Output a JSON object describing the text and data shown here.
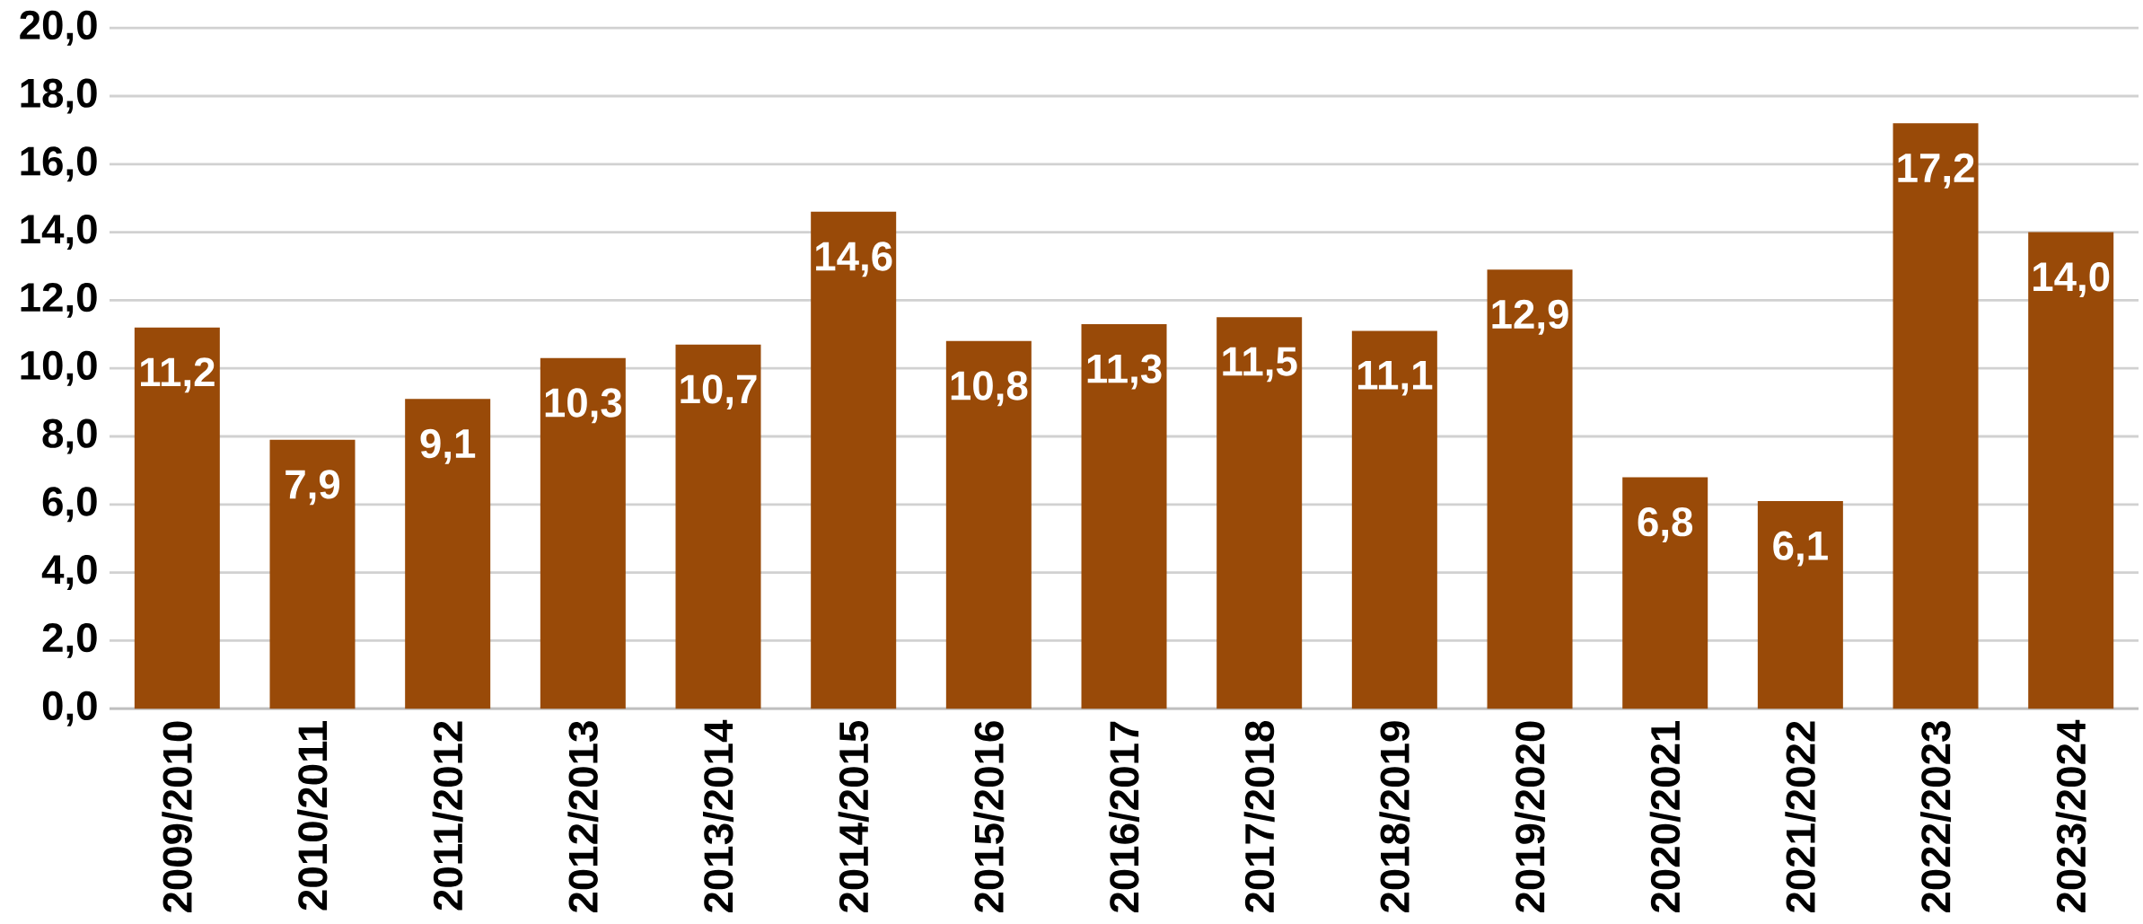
{
  "chart_data": {
    "type": "bar",
    "categories": [
      "2009/2010",
      "2010/2011",
      "2011/2012",
      "2012/2013",
      "2013/2014",
      "2014/2015",
      "2015/2016",
      "2016/2017",
      "2017/2018",
      "2018/2019",
      "2019/2020",
      "2020/2021",
      "2021/2022",
      "2022/2023",
      "2023/2024"
    ],
    "values": [
      11.2,
      7.9,
      9.1,
      10.3,
      10.7,
      14.6,
      10.8,
      11.3,
      11.5,
      11.1,
      12.9,
      6.8,
      6.1,
      17.2,
      14.0
    ],
    "value_labels": [
      "11,2",
      "7,9",
      "9,1",
      "10,3",
      "10,7",
      "14,6",
      "10,8",
      "11,3",
      "11,5",
      "11,1",
      "12,9",
      "6,8",
      "6,1",
      "17,2",
      "14,0"
    ],
    "color": "#994a08",
    "ylim": [
      0,
      20
    ],
    "yticks": [
      {
        "value": 0,
        "label": "0,0"
      },
      {
        "value": 2,
        "label": "2,0"
      },
      {
        "value": 4,
        "label": "4,0"
      },
      {
        "value": 6,
        "label": "6,0"
      },
      {
        "value": 8,
        "label": "8,0"
      },
      {
        "value": 10,
        "label": "10,0"
      },
      {
        "value": 12,
        "label": "12,0"
      },
      {
        "value": 14,
        "label": "14,0"
      },
      {
        "value": 16,
        "label": "16,0"
      },
      {
        "value": 18,
        "label": "18,0"
      },
      {
        "value": 20,
        "label": "20,0"
      }
    ],
    "grid": "y"
  }
}
